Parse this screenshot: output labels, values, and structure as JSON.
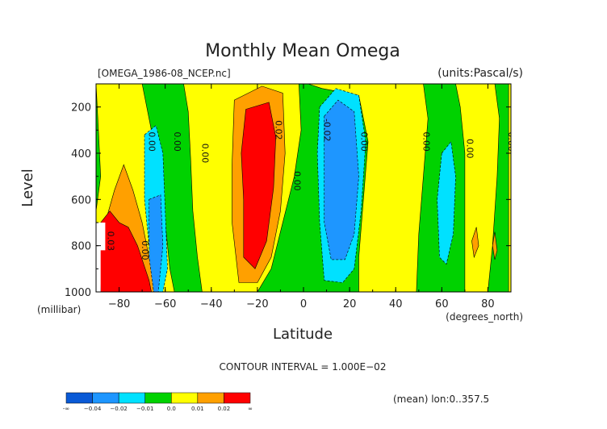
{
  "chart_data": {
    "type": "heatmap",
    "title": "Monthly Mean Omega",
    "file_label": "[OMEGA_1986-08_NCEP.nc]",
    "units_label": "(units:Pascal/s)",
    "xlabel": "Latitude",
    "x_units": "(degrees_north)",
    "ylabel": "Level",
    "y_units": "(millibar)",
    "xlim": [
      -90,
      90
    ],
    "ylim": [
      1000,
      100
    ],
    "x_ticks": [
      -80,
      -60,
      -40,
      -20,
      0,
      20,
      40,
      60,
      80
    ],
    "x_tick_labels": [
      "−80",
      "−60",
      "−40",
      "−20",
      "0",
      "20",
      "40",
      "60",
      "80"
    ],
    "y_ticks": [
      200,
      400,
      600,
      800,
      1000
    ],
    "y_tick_labels": [
      "200",
      "400",
      "600",
      "800",
      "1000"
    ],
    "contour_interval_text": "CONTOUR INTERVAL = 1.000E−02",
    "mean_note": "(mean) lon:0..357.5",
    "color_levels": [
      {
        "label": "-0.04",
        "color": "#0a5ad6"
      },
      {
        "label": "-0.02",
        "color": "#1e96ff"
      },
      {
        "label": "-0.01",
        "color": "#00e1ff"
      },
      {
        "label": "0.0",
        "color": "#00d200"
      },
      {
        "label": "0.01",
        "color": "#ffff00"
      },
      {
        "label": "0.02",
        "color": "#ffa000"
      },
      {
        "label": "∞",
        "color": "#ff0000"
      }
    ],
    "colorbar_labels": [
      "-∞",
      "−0.04",
      "−0.02",
      "−0.01",
      "0.0",
      "0.01",
      "0.02",
      "∞"
    ],
    "contour_labels": [
      {
        "text": "0.00",
        "lat": -67,
        "lev": 350
      },
      {
        "text": "0.00",
        "lat": -56,
        "lev": 350
      },
      {
        "text": "0.00",
        "lat": -44,
        "lev": 400
      },
      {
        "text": "0.02",
        "lat": -12,
        "lev": 300
      },
      {
        "text": "0.00",
        "lat": -4,
        "lev": 520
      },
      {
        "text": "-0.02",
        "lat": 9,
        "lev": 300
      },
      {
        "text": "0.00",
        "lat": 25,
        "lev": 350
      },
      {
        "text": "0.00",
        "lat": 52,
        "lev": 350
      },
      {
        "text": "0.00",
        "lat": 71,
        "lev": 380
      },
      {
        "text": "0.00",
        "lat": 89,
        "lev": 350
      },
      {
        "text": "0.03",
        "lat": -85,
        "lev": 780
      },
      {
        "text": "0.00",
        "lat": -70,
        "lev": 820
      }
    ],
    "regions": [
      {
        "name": "green-background",
        "level": "0.0",
        "poly": [
          [
            -90,
            100
          ],
          [
            90,
            100
          ],
          [
            90,
            1000
          ],
          [
            -90,
            1000
          ]
        ]
      },
      {
        "name": "yellow-south",
        "level": "0.01",
        "poly": [
          [
            -90,
            100
          ],
          [
            -70,
            100
          ],
          [
            -66,
            300
          ],
          [
            -63,
            500
          ],
          [
            -60,
            700
          ],
          [
            -58,
            900
          ],
          [
            -56,
            1000
          ],
          [
            -90,
            1000
          ],
          [
            -90,
            650
          ],
          [
            -88,
            500
          ],
          [
            -89,
            300
          ]
        ]
      },
      {
        "name": "yellow-midsouth",
        "level": "0.01",
        "poly": [
          [
            -52,
            100
          ],
          [
            -2,
            100
          ],
          [
            -1,
            300
          ],
          [
            -4,
            500
          ],
          [
            -9,
            700
          ],
          [
            -14,
            900
          ],
          [
            -20,
            1000
          ],
          [
            -44,
            1000
          ],
          [
            -46,
            850
          ],
          [
            -48,
            650
          ],
          [
            -49,
            420
          ],
          [
            -50,
            220
          ]
        ]
      },
      {
        "name": "yellow-north",
        "level": "0.01",
        "poly": [
          [
            2,
            100
          ],
          [
            52,
            100
          ],
          [
            54,
            250
          ],
          [
            52,
            500
          ],
          [
            50,
            750
          ],
          [
            49,
            1000
          ],
          [
            24,
            1000
          ],
          [
            24,
            850
          ],
          [
            26,
            600
          ],
          [
            28,
            350
          ],
          [
            24,
            150
          ],
          [
            8,
            120
          ]
        ]
      },
      {
        "name": "yellow-farnorth",
        "level": "0.01",
        "poly": [
          [
            66,
            100
          ],
          [
            83,
            100
          ],
          [
            85,
            250
          ],
          [
            84,
            500
          ],
          [
            82,
            800
          ],
          [
            80,
            1000
          ],
          [
            70,
            1000
          ],
          [
            70,
            700
          ],
          [
            70,
            400
          ],
          [
            68,
            200
          ]
        ]
      },
      {
        "name": "yellow-edge",
        "level": "0.01",
        "poly": [
          [
            89,
            100
          ],
          [
            90,
            100
          ],
          [
            90,
            1000
          ],
          [
            89,
            1000
          ]
        ]
      },
      {
        "name": "orange-midsouth",
        "level": "0.02",
        "poly": [
          [
            -30,
            170
          ],
          [
            -18,
            110
          ],
          [
            -9,
            140
          ],
          [
            -8,
            400
          ],
          [
            -10,
            650
          ],
          [
            -14,
            850
          ],
          [
            -20,
            960
          ],
          [
            -28,
            960
          ],
          [
            -31,
            700
          ],
          [
            -31,
            450
          ]
        ]
      },
      {
        "name": "red-midsouth",
        "level": "∞",
        "poly": [
          [
            -25,
            210
          ],
          [
            -15,
            180
          ],
          [
            -12,
            330
          ],
          [
            -13,
            550
          ],
          [
            -16,
            780
          ],
          [
            -21,
            900
          ],
          [
            -26,
            850
          ],
          [
            -26,
            600
          ],
          [
            -27,
            400
          ]
        ]
      },
      {
        "name": "orange-south",
        "level": "0.02",
        "poly": [
          [
            -86,
            700
          ],
          [
            -82,
            560
          ],
          [
            -78,
            450
          ],
          [
            -74,
            560
          ],
          [
            -70,
            700
          ],
          [
            -66,
            900
          ],
          [
            -64,
            1000
          ],
          [
            -88,
            1000
          ],
          [
            -89,
            820
          ]
        ]
      },
      {
        "name": "red-south",
        "level": "∞",
        "poly": [
          [
            -88,
            700
          ],
          [
            -84,
            650
          ],
          [
            -80,
            700
          ],
          [
            -76,
            720
          ],
          [
            -72,
            800
          ],
          [
            -67,
            950
          ],
          [
            -66,
            1000
          ],
          [
            -88,
            1000
          ],
          [
            -89,
            800
          ]
        ]
      },
      {
        "name": "orange-spot-1",
        "level": "0.02",
        "poly": [
          [
            73,
            780
          ],
          [
            75,
            720
          ],
          [
            76,
            800
          ],
          [
            74,
            850
          ]
        ]
      },
      {
        "name": "orange-spot-2",
        "level": "0.02",
        "poly": [
          [
            82,
            800
          ],
          [
            83,
            740
          ],
          [
            84,
            820
          ],
          [
            83,
            860
          ]
        ]
      },
      {
        "name": "cyan-south",
        "level": "-0.01",
        "poly": [
          [
            -69,
            320
          ],
          [
            -64,
            280
          ],
          [
            -61,
            400
          ],
          [
            -60,
            650
          ],
          [
            -59,
            900
          ],
          [
            -61,
            1000
          ],
          [
            -65,
            1000
          ],
          [
            -67,
            800
          ],
          [
            -69,
            600
          ]
        ]
      },
      {
        "name": "blue-south",
        "level": "-0.02",
        "poly": [
          [
            -67,
            600
          ],
          [
            -62,
            580
          ],
          [
            -61,
            800
          ],
          [
            -63,
            1000
          ],
          [
            -65,
            1000
          ],
          [
            -67,
            850
          ]
        ]
      },
      {
        "name": "cyan-north",
        "level": "-0.01",
        "poly": [
          [
            7,
            200
          ],
          [
            14,
            120
          ],
          [
            24,
            150
          ],
          [
            27,
            350
          ],
          [
            25,
            650
          ],
          [
            22,
            900
          ],
          [
            17,
            960
          ],
          [
            9,
            950
          ],
          [
            7,
            700
          ],
          [
            6,
            400
          ]
        ]
      },
      {
        "name": "blue-north",
        "level": "-0.02",
        "poly": [
          [
            9,
            240
          ],
          [
            15,
            170
          ],
          [
            22,
            220
          ],
          [
            24,
            500
          ],
          [
            22,
            750
          ],
          [
            18,
            860
          ],
          [
            12,
            860
          ],
          [
            9,
            700
          ],
          [
            9,
            450
          ]
        ]
      },
      {
        "name": "cyan-farnorth",
        "level": "-0.01",
        "poly": [
          [
            60,
            400
          ],
          [
            64,
            350
          ],
          [
            66,
            500
          ],
          [
            65,
            750
          ],
          [
            62,
            880
          ],
          [
            59,
            850
          ],
          [
            58,
            600
          ]
        ]
      },
      {
        "name": "white-mask",
        "level": "none",
        "poly": [
          [
            -90,
            700
          ],
          [
            -86,
            700
          ],
          [
            -86,
            820
          ],
          [
            -88,
            820
          ],
          [
            -88,
            1000
          ],
          [
            -90,
            1000
          ]
        ]
      }
    ]
  }
}
